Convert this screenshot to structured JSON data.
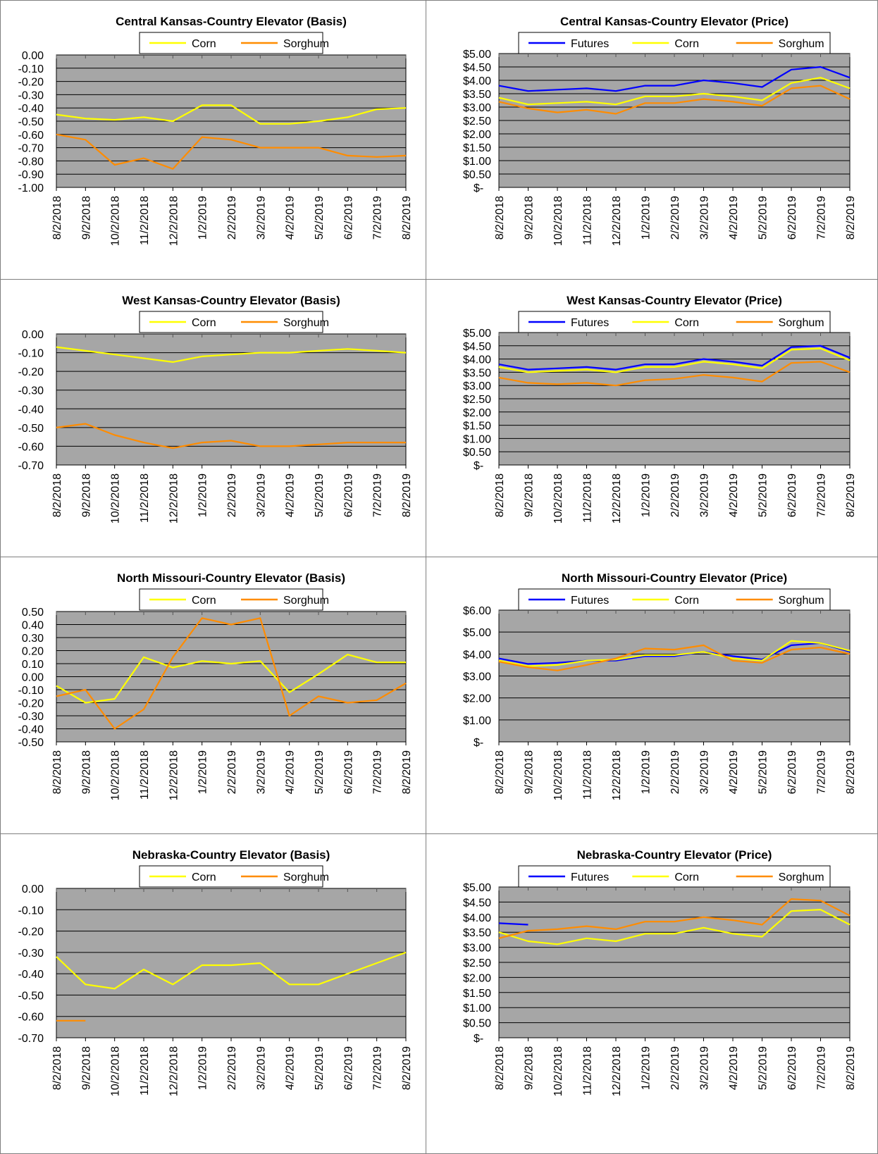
{
  "colors": {
    "plot_bg": "#a6a6a6",
    "futures": "#0000ff",
    "corn": "#ffff00",
    "sorghum": "#ff8c00",
    "border": "#7f7f7f"
  },
  "x_tick_labels": [
    "8/2/2018",
    "9/2/2018",
    "10/2/2018",
    "11/2/2018",
    "12/2/2018",
    "1/2/2019",
    "2/2/2019",
    "3/2/2019",
    "4/2/2019",
    "5/2/2019",
    "6/2/2019",
    "7/2/2019",
    "8/2/2019"
  ],
  "chart_data": [
    {
      "type": "line",
      "title": "Central Kansas-Country Elevator (Basis)",
      "legend": [
        "Corn",
        "Sorghum"
      ],
      "ylim": [
        -1.0,
        0.0
      ],
      "y_ticks": [
        "0.00",
        "-0.10",
        "-0.20",
        "-0.30",
        "-0.40",
        "-0.50",
        "-0.60",
        "-0.70",
        "-0.80",
        "-0.90",
        "-1.00"
      ],
      "x": [
        "8/2/2018",
        "9/2/2018",
        "10/2/2018",
        "11/2/2018",
        "12/2/2018",
        "1/2/2019",
        "2/2/2019",
        "3/2/2019",
        "4/2/2019",
        "5/2/2019",
        "6/2/2019",
        "7/2/2019",
        "8/2/2019"
      ],
      "series": [
        {
          "name": "Corn",
          "values": [
            -0.45,
            -0.48,
            -0.49,
            -0.47,
            -0.5,
            -0.38,
            -0.38,
            -0.52,
            -0.52,
            -0.5,
            -0.47,
            -0.41,
            -0.4
          ]
        },
        {
          "name": "Sorghum",
          "values": [
            -0.6,
            -0.64,
            -0.83,
            -0.78,
            -0.86,
            -0.62,
            -0.64,
            -0.7,
            -0.7,
            -0.7,
            -0.76,
            -0.77,
            -0.76
          ]
        }
      ]
    },
    {
      "type": "line",
      "title": "Central Kansas-Country Elevator (Price)",
      "legend": [
        "Futures",
        "Corn",
        "Sorghum"
      ],
      "ylim": [
        0,
        5.0
      ],
      "y_ticks": [
        "$5.00",
        "$4.50",
        "$4.00",
        "$3.50",
        "$3.00",
        "$2.50",
        "$2.00",
        "$1.50",
        "$1.00",
        "$0.50",
        "$-"
      ],
      "x": [
        "8/2/2018",
        "9/2/2018",
        "10/2/2018",
        "11/2/2018",
        "12/2/2018",
        "1/2/2019",
        "2/2/2019",
        "3/2/2019",
        "4/2/2019",
        "5/2/2019",
        "6/2/2019",
        "7/2/2019",
        "8/2/2019"
      ],
      "series": [
        {
          "name": "Futures",
          "values": [
            3.8,
            3.6,
            3.65,
            3.7,
            3.6,
            3.8,
            3.8,
            4.0,
            3.9,
            3.75,
            4.4,
            4.5,
            4.1
          ]
        },
        {
          "name": "Corn",
          "values": [
            3.35,
            3.1,
            3.15,
            3.2,
            3.1,
            3.4,
            3.4,
            3.5,
            3.4,
            3.25,
            3.9,
            4.1,
            3.7
          ]
        },
        {
          "name": "Sorghum",
          "values": [
            3.2,
            2.95,
            2.8,
            2.9,
            2.75,
            3.15,
            3.15,
            3.3,
            3.2,
            3.05,
            3.7,
            3.8,
            3.3
          ]
        }
      ]
    },
    {
      "type": "line",
      "title": "West Kansas-Country Elevator (Basis)",
      "legend": [
        "Corn",
        "Sorghum"
      ],
      "ylim": [
        -0.7,
        0.0
      ],
      "y_ticks": [
        "0.00",
        "-0.10",
        "-0.20",
        "-0.30",
        "-0.40",
        "-0.50",
        "-0.60",
        "-0.70"
      ],
      "x": [
        "8/2/2018",
        "9/2/2018",
        "10/2/2018",
        "11/2/2018",
        "12/2/2018",
        "1/2/2019",
        "2/2/2019",
        "3/2/2019",
        "4/2/2019",
        "5/2/2019",
        "6/2/2019",
        "7/2/2019",
        "8/2/2019"
      ],
      "series": [
        {
          "name": "Corn",
          "values": [
            -0.07,
            -0.09,
            -0.11,
            -0.13,
            -0.15,
            -0.12,
            -0.11,
            -0.1,
            -0.1,
            -0.09,
            -0.08,
            -0.09,
            -0.1
          ]
        },
        {
          "name": "Sorghum",
          "values": [
            -0.5,
            -0.48,
            -0.54,
            -0.58,
            -0.61,
            -0.58,
            -0.57,
            -0.6,
            -0.6,
            -0.59,
            -0.58,
            -0.58,
            -0.58
          ]
        }
      ]
    },
    {
      "type": "line",
      "title": "West Kansas-Country Elevator (Price)",
      "legend": [
        "Futures",
        "Corn",
        "Sorghum"
      ],
      "ylim": [
        0,
        5.0
      ],
      "y_ticks": [
        "$5.00",
        "$4.50",
        "$4.00",
        "$3.50",
        "$3.00",
        "$2.50",
        "$2.00",
        "$1.50",
        "$1.00",
        "$0.50",
        "$-"
      ],
      "x": [
        "8/2/2018",
        "9/2/2018",
        "10/2/2018",
        "11/2/2018",
        "12/2/2018",
        "1/2/2019",
        "2/2/2019",
        "3/2/2019",
        "4/2/2019",
        "5/2/2019",
        "6/2/2019",
        "7/2/2019",
        "8/2/2019"
      ],
      "series": [
        {
          "name": "Futures",
          "values": [
            3.8,
            3.6,
            3.65,
            3.7,
            3.6,
            3.8,
            3.8,
            4.0,
            3.9,
            3.75,
            4.45,
            4.5,
            4.05
          ]
        },
        {
          "name": "Corn",
          "values": [
            3.7,
            3.5,
            3.55,
            3.6,
            3.5,
            3.7,
            3.7,
            3.9,
            3.8,
            3.65,
            4.35,
            4.4,
            3.95
          ]
        },
        {
          "name": "Sorghum",
          "values": [
            3.3,
            3.1,
            3.05,
            3.1,
            3.0,
            3.2,
            3.25,
            3.4,
            3.3,
            3.15,
            3.85,
            3.9,
            3.5
          ]
        }
      ]
    },
    {
      "type": "line",
      "title": "North Missouri-Country Elevator (Basis)",
      "legend": [
        "Corn",
        "Sorghum"
      ],
      "ylim": [
        -0.5,
        0.5
      ],
      "y_ticks": [
        "0.50",
        "0.40",
        "0.30",
        "0.20",
        "0.10",
        "0.00",
        "-0.10",
        "-0.20",
        "-0.30",
        "-0.40",
        "-0.50"
      ],
      "x": [
        "8/2/2018",
        "9/2/2018",
        "10/2/2018",
        "11/2/2018",
        "12/2/2018",
        "1/2/2019",
        "2/2/2019",
        "3/2/2019",
        "4/2/2019",
        "5/2/2019",
        "6/2/2019",
        "7/2/2019",
        "8/2/2019"
      ],
      "series": [
        {
          "name": "Corn",
          "values": [
            -0.07,
            -0.2,
            -0.17,
            0.15,
            0.07,
            0.12,
            0.1,
            0.12,
            -0.12,
            0.02,
            0.17,
            0.11,
            0.11
          ]
        },
        {
          "name": "Sorghum",
          "values": [
            -0.15,
            -0.1,
            -0.4,
            -0.25,
            0.15,
            0.45,
            0.4,
            0.45,
            -0.3,
            -0.15,
            -0.2,
            -0.18,
            -0.05
          ]
        }
      ]
    },
    {
      "type": "line",
      "title": "North Missouri-Country Elevator (Price)",
      "legend": [
        "Futures",
        "Corn",
        "Sorghum"
      ],
      "ylim": [
        0,
        6.0
      ],
      "y_ticks": [
        "$6.00",
        "$5.00",
        "$4.00",
        "$3.00",
        "$2.00",
        "$1.00",
        "$-"
      ],
      "x": [
        "8/2/2018",
        "9/2/2018",
        "10/2/2018",
        "11/2/2018",
        "12/2/2018",
        "1/2/2019",
        "2/2/2019",
        "3/2/2019",
        "4/2/2019",
        "5/2/2019",
        "6/2/2019",
        "7/2/2019",
        "8/2/2019"
      ],
      "series": [
        {
          "name": "Futures",
          "values": [
            3.8,
            3.55,
            3.6,
            3.7,
            3.7,
            3.9,
            3.9,
            4.1,
            3.9,
            3.75,
            4.4,
            4.5,
            4.1
          ]
        },
        {
          "name": "Corn",
          "values": [
            3.7,
            3.45,
            3.5,
            3.7,
            3.75,
            3.95,
            3.95,
            4.1,
            3.8,
            3.7,
            4.6,
            4.5,
            4.15
          ]
        },
        {
          "name": "Sorghum",
          "values": [
            3.65,
            3.4,
            3.25,
            3.5,
            3.8,
            4.25,
            4.2,
            4.4,
            3.7,
            3.6,
            4.2,
            4.3,
            4.0
          ]
        }
      ]
    },
    {
      "type": "line",
      "title": "Nebraska-Country Elevator (Basis)",
      "legend": [
        "Corn",
        "Sorghum"
      ],
      "ylim": [
        -0.7,
        0.0
      ],
      "y_ticks": [
        "0.00",
        "-0.10",
        "-0.20",
        "-0.30",
        "-0.40",
        "-0.50",
        "-0.60",
        "-0.70"
      ],
      "x": [
        "8/2/2018",
        "9/2/2018",
        "10/2/2018",
        "11/2/2018",
        "12/2/2018",
        "1/2/2019",
        "2/2/2019",
        "3/2/2019",
        "4/2/2019",
        "5/2/2019",
        "6/2/2019",
        "7/2/2019",
        "8/2/2019"
      ],
      "series": [
        {
          "name": "Corn",
          "values": [
            -0.32,
            -0.45,
            -0.47,
            -0.38,
            -0.45,
            -0.36,
            -0.36,
            -0.35,
            -0.45,
            -0.45,
            -0.4,
            -0.35,
            -0.3
          ]
        },
        {
          "name": "Sorghum",
          "values": [
            -0.62,
            -0.62,
            null,
            null,
            null,
            null,
            null,
            null,
            null,
            null,
            null,
            null,
            null
          ]
        }
      ]
    },
    {
      "type": "line",
      "title": "Nebraska-Country Elevator (Price)",
      "legend": [
        "Futures",
        "Corn",
        "Sorghum"
      ],
      "ylim": [
        0,
        5.0
      ],
      "y_ticks": [
        "$5.00",
        "$4.50",
        "$4.00",
        "$3.50",
        "$3.00",
        "$2.50",
        "$2.00",
        "$1.50",
        "$1.00",
        "$0.50",
        "$-"
      ],
      "x": [
        "8/2/2018",
        "9/2/2018",
        "10/2/2018",
        "11/2/2018",
        "12/2/2018",
        "1/2/2019",
        "2/2/2019",
        "3/2/2019",
        "4/2/2019",
        "5/2/2019",
        "6/2/2019",
        "7/2/2019",
        "8/2/2019"
      ],
      "series": [
        {
          "name": "Futures",
          "values": [
            3.8,
            3.75,
            null,
            null,
            null,
            null,
            null,
            null,
            null,
            null,
            null,
            null,
            null
          ]
        },
        {
          "name": "Corn",
          "values": [
            3.5,
            3.2,
            3.1,
            3.3,
            3.2,
            3.45,
            3.45,
            3.65,
            3.45,
            3.35,
            4.2,
            4.25,
            3.75
          ]
        },
        {
          "name": "Sorghum",
          "values": [
            3.3,
            3.55,
            3.6,
            3.7,
            3.6,
            3.85,
            3.85,
            4.0,
            3.9,
            3.75,
            4.6,
            4.55,
            4.05
          ]
        }
      ]
    }
  ]
}
